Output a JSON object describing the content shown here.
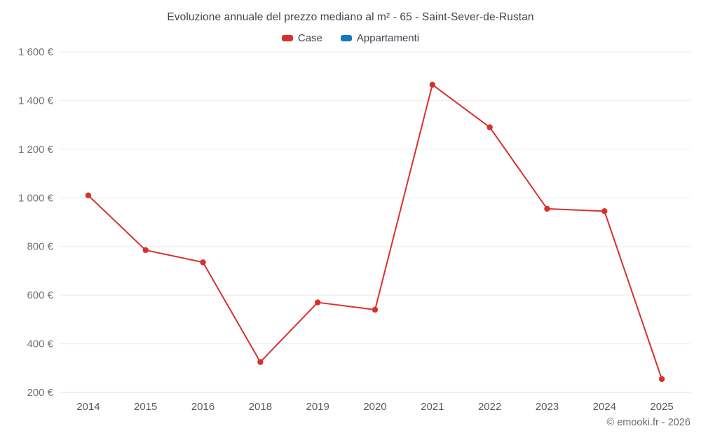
{
  "chart_data": {
    "type": "line",
    "title": "Evoluzione annuale del prezzo mediano al m² - 65 - Saint-Sever-de-Rustan",
    "categories": [
      "2014",
      "2015",
      "2016",
      "2018",
      "2019",
      "2020",
      "2021",
      "2022",
      "2023",
      "2024",
      "2025"
    ],
    "series": [
      {
        "name": "Case",
        "color": "#d7312e",
        "values": [
          1010,
          785,
          735,
          325,
          570,
          540,
          1465,
          1290,
          955,
          945,
          255
        ]
      },
      {
        "name": "Appartamenti",
        "color": "#1779ba",
        "values": []
      }
    ],
    "ylim": [
      200,
      1600
    ],
    "ytick_step": 200,
    "ytick_labels": [
      "200 €",
      "400 €",
      "600 €",
      "800 €",
      "1 000 €",
      "1 200 €",
      "1 400 €",
      "1 600 €"
    ],
    "xlabel": "",
    "ylabel": "",
    "grid": "horizontal",
    "legend_position": "top"
  },
  "footer": {
    "copyright": "© emooki.fr - 2026"
  }
}
